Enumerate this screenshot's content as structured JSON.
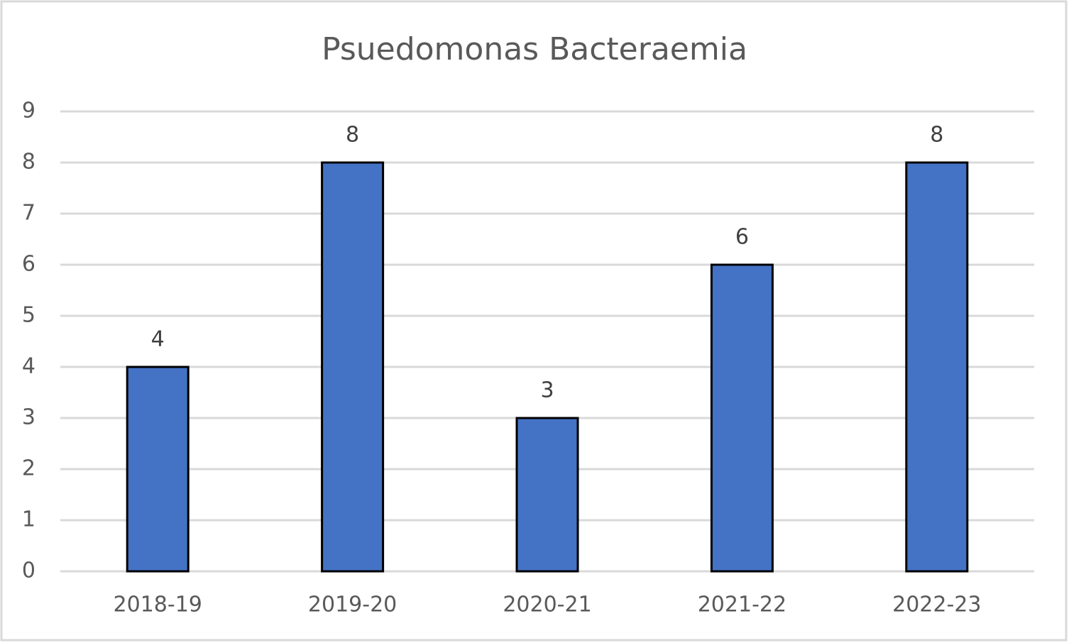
{
  "chart_data": {
    "type": "bar",
    "title": "Psuedomonas Bacteraemia",
    "categories": [
      "2018-19",
      "2019-20",
      "2020-21",
      "2021-22",
      "2022-23"
    ],
    "values": [
      4,
      8,
      3,
      6,
      8
    ],
    "color": "#4472c4",
    "ylim": [
      0,
      9
    ],
    "yticks": [
      0,
      1,
      2,
      3,
      4,
      5,
      6,
      7,
      8,
      9
    ],
    "grid": true
  }
}
